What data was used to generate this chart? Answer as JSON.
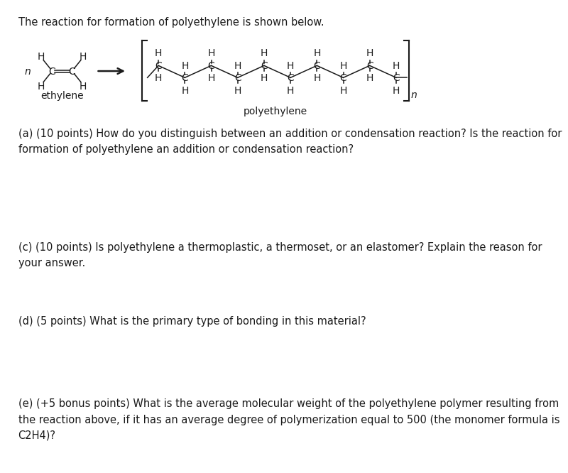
{
  "title_text": "The reaction for formation of polyethylene is shown below.",
  "question_a": "(a) (10 points) How do you distinguish between an addition or condensation reaction? Is the reaction for\nformation of polyethylene an addition or condensation reaction?",
  "question_c": "(c) (10 points) Is polyethylene a thermoplastic, a thermoset, or an elastomer? Explain the reason for\nyour answer.",
  "question_d": "(d) (5 points) What is the primary type of bonding in this material?",
  "question_e": "(e) (+5 bonus points) What is the average molecular weight of the polyethylene polymer resulting from\nthe reaction above, if it has an average degree of polymerization equal to 500 (the monomer formula is\nC2H4)?",
  "bg_color": "#ffffff",
  "text_color": "#1a1a1a",
  "font_size_title": 10.5,
  "font_size_body": 10.5,
  "font_size_chem": 10.0
}
